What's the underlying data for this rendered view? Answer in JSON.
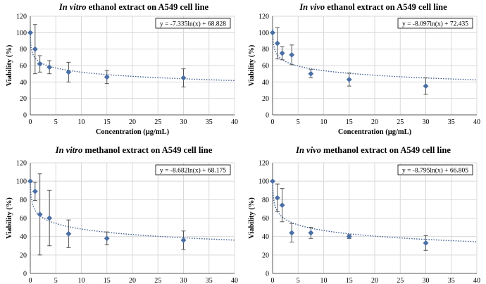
{
  "chart_data": [
    {
      "type": "scatter",
      "title_italic": "In vitro",
      "title_rest": " ethanol  extract on A549 cell line",
      "xlabel": "Concentration  (µg/mL)",
      "ylabel": "Viability (%)",
      "xlim": [
        0,
        40
      ],
      "ylim": [
        0,
        120
      ],
      "xticks": [
        "0",
        "5",
        "10",
        "15",
        "20",
        "25",
        "30",
        "35",
        "40"
      ],
      "yticks": [
        "0",
        "20",
        "40",
        "60",
        "80",
        "100",
        "120"
      ],
      "grid": true,
      "equation": "y = -7.335ln(x)  + 68.828",
      "trend": {
        "type": "log",
        "a": -7.335,
        "b": 68.828
      },
      "series": [
        {
          "x": [
            0,
            0.94,
            1.88,
            3.75,
            7.5,
            15,
            30
          ],
          "y": [
            100,
            80,
            62,
            58,
            52,
            46,
            45
          ],
          "err": [
            0,
            30,
            10,
            8,
            12,
            8,
            11
          ]
        }
      ]
    },
    {
      "type": "scatter",
      "title_italic": "In vivo",
      "title_rest": " ethanol  extract on A549 cell line",
      "xlabel": "Concentration  (µg/mL)",
      "ylabel": "Viability (%)",
      "xlim": [
        0,
        40
      ],
      "ylim": [
        0,
        120
      ],
      "xticks": [
        "0",
        "5",
        "10",
        "15",
        "20",
        "25",
        "30",
        "35",
        "40"
      ],
      "yticks": [
        "0",
        "20",
        "40",
        "60",
        "80",
        "100",
        "120"
      ],
      "grid": true,
      "equation": "y = -8.097ln(x)  + 72.435",
      "trend": {
        "type": "log",
        "a": -8.097,
        "b": 72.435
      },
      "series": [
        {
          "x": [
            0,
            0.94,
            1.88,
            3.75,
            7.5,
            15,
            30
          ],
          "y": [
            100,
            87,
            75,
            73,
            50,
            43,
            35
          ],
          "err": [
            0,
            19,
            8,
            12,
            5,
            8,
            10
          ]
        }
      ]
    },
    {
      "type": "scatter",
      "title_italic": "In vitro",
      "title_rest": " methanol  extract on A549 cell line",
      "xlabel": "Concentration  (µg/mL)",
      "ylabel": "Viability (%)",
      "xlim": [
        0,
        40
      ],
      "ylim": [
        0,
        120
      ],
      "xticks": [
        "0",
        "5",
        "10",
        "15",
        "20",
        "25",
        "30",
        "35",
        "40"
      ],
      "yticks": [
        "0",
        "20",
        "40",
        "60",
        "80",
        "100",
        "120"
      ],
      "grid": true,
      "equation": "y = -8.682ln(x)  + 68.175",
      "trend": {
        "type": "log",
        "a": -8.682,
        "b": 68.175
      },
      "series": [
        {
          "x": [
            0,
            0.94,
            1.88,
            3.75,
            7.5,
            15,
            30
          ],
          "y": [
            100,
            89,
            64,
            60,
            43,
            38,
            36
          ],
          "err": [
            0,
            10,
            44,
            30,
            15,
            7,
            10
          ]
        }
      ]
    },
    {
      "type": "scatter",
      "title_italic": "In vivo",
      "title_rest": " methanol  extract on A549 cell line",
      "xlabel": "Concentration  (µg/mL)",
      "ylabel": "Viability (%)",
      "xlim": [
        0,
        40
      ],
      "ylim": [
        0,
        120
      ],
      "xticks": [
        "0",
        "5",
        "10",
        "15",
        "20",
        "25",
        "30",
        "35",
        "40"
      ],
      "yticks": [
        "0",
        "20",
        "40",
        "60",
        "80",
        "100",
        "120"
      ],
      "grid": true,
      "equation": "y = -8.795ln(x)  + 66.805",
      "trend": {
        "type": "log",
        "a": -8.795,
        "b": 66.805
      },
      "series": [
        {
          "x": [
            0,
            0.94,
            1.88,
            3.75,
            7.5,
            15,
            30
          ],
          "y": [
            100,
            82,
            74,
            44,
            44,
            40,
            33
          ],
          "err": [
            0,
            15,
            18,
            10,
            6,
            2,
            8
          ]
        }
      ]
    }
  ],
  "colors": {
    "marker": "#4a6fa5",
    "error_bar": "#555555",
    "trendline": "#3f5f8f",
    "grid": "#d9d9d9",
    "axis": "#595959",
    "text": "#000000"
  }
}
